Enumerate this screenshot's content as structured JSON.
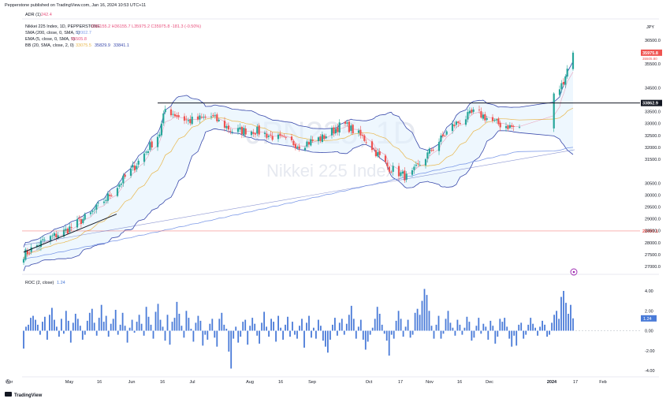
{
  "header": {
    "publisher_text": "Pepperstone published on TradingView.com, Jan 16, 2024 10:53 UTC+11",
    "adr_label": "ADR (1)",
    "adr_value": "242.4",
    "symbol_line": "Nikkei 225 Index, 1D, PEPPERSTONE",
    "ohlc": "O36155.2 H36155.7 L35975.2 C35975.8 -181.3 (-0.50%)",
    "sma_label": "SMA (200, close, 0, SMA, 5)",
    "sma_value": "32002.7",
    "ema_label": "EMA (5, close, 0, SMA, 5)",
    "ema_value": "35505.8",
    "bb_label": "BB (20, SMA, close, 2, 0)",
    "bb_values": [
      "33075.5",
      "35829.9",
      "33841.1"
    ],
    "currency": "JPY"
  },
  "watermark": {
    "ticker": "JPN225, 1D",
    "name": "Nikkei 225 Index"
  },
  "price_labels": {
    "current": "35975.8",
    "current_sub": "35505.80",
    "resistance": "33862.9",
    "support_line": "28490.1"
  },
  "roc_panel": {
    "label": "ROC (2, close)",
    "value": "1.24"
  },
  "footer": {
    "brand": "TradingView"
  },
  "colors": {
    "up": "#26a69a",
    "down": "#ef5350",
    "sma": "#7e9be8",
    "ema": "#e84f7c",
    "bb_basis": "#e8b64a",
    "bb_band": "#3949ab",
    "bb_fill": "#e3f2fd",
    "roc_bar": "#4a7bd8",
    "horizontal": "#131722",
    "support_red": "#ef5350"
  },
  "chart_data": [
    {
      "type": "candlestick",
      "title": "Nikkei 225 Index, 1D, PEPPERSTONE",
      "y_axis_ticks": [
        "36500.0",
        "35500.0",
        "34500.0",
        "33500.0",
        "33000.0",
        "32500.0",
        "32000.0",
        "31500.0",
        "30500.0",
        "30000.0",
        "29500.0",
        "29000.0",
        "28500.0",
        "28000.0",
        "27500.0",
        "27000.0"
      ],
      "x_axis_ticks": [
        "Apr",
        "May",
        "16",
        "Jun",
        "16",
        "Jul",
        "Aug",
        "16",
        "Sep",
        "Oct",
        "17",
        "Nov",
        "16",
        "Dec",
        "2024",
        "17",
        "Feb"
      ],
      "ylim": [
        26800,
        36700
      ],
      "key_levels": {
        "resistance": 33862.9,
        "horizontal_line": 28490.1
      },
      "close_path": {
        "x": [
          "Apr 3",
          "Apr 14",
          "Apr 25",
          "May 8",
          "May 19",
          "May 31",
          "Jun 13",
          "Jun 16",
          "Jun 28",
          "Jul 10",
          "Jul 21",
          "Aug 2",
          "Aug 13",
          "Aug 25",
          "Sep 6",
          "Sep 17",
          "Sep 29",
          "Oct 10",
          "Oct 21",
          "Nov 2",
          "Nov 13",
          "Nov 25",
          "Dec 6",
          "Dec 17",
          "Dec 29",
          "Jan 9",
          "Jan 15"
        ],
        "y": [
          27500,
          28100,
          28500,
          29200,
          30100,
          31200,
          32600,
          33600,
          33100,
          33300,
          32700,
          32700,
          32400,
          32100,
          32400,
          33000,
          32300,
          31200,
          30700,
          31900,
          32900,
          33500,
          33000,
          32800,
          33400,
          34600,
          35975.8
        ]
      },
      "series": [
        {
          "name": "SMA (200, close, 0, SMA, 5)",
          "last": 32002.7
        },
        {
          "name": "EMA (5, close, 0, SMA, 5)",
          "last": 35505.8
        },
        {
          "name": "BB (20, SMA, close, 2, 0)",
          "last": [
            33075.5,
            35829.9,
            33841.1
          ]
        }
      ],
      "grid": false,
      "legend": "top-left"
    },
    {
      "type": "bar",
      "title": "ROC (2, close)",
      "y_axis_ticks": [
        "4.00",
        "2.00",
        "0.00",
        "-2.00",
        "-4.00"
      ],
      "ylim": [
        -4.2,
        4.6
      ],
      "last": 1.24,
      "values": [
        -1.8,
        0.4,
        0.6,
        1.3,
        1.5,
        1.1,
        0.6,
        -0.4,
        0.9,
        1.4,
        -0.9,
        1.6,
        2.3,
        1.1,
        0.4,
        -0.6,
        1.2,
        -0.3,
        2.0,
        1.0,
        -1.2,
        0.8,
        1.7,
        1.2,
        0.5,
        -0.9,
        -0.4,
        1.0,
        1.8,
        2.2,
        0.8,
        -0.5,
        1.3,
        2.6,
        0.9,
        1.5,
        -0.6,
        0.7,
        1.2,
        2.1,
        -0.4,
        0.6,
        1.8,
        0.5,
        -1.2,
        0.3,
        1.1,
        -0.2,
        0.9,
        1.6,
        0.7,
        -0.5,
        2.4,
        1.4,
        0.6,
        -0.8,
        1.9,
        2.7,
        1.1,
        0.4,
        -1.0,
        1.6,
        -1.4,
        0.9,
        1.3,
        2.9,
        1.7,
        0.5,
        -0.7,
        2.0,
        1.3,
        0.2,
        -1.1,
        0.8,
        1.5,
        1.0,
        -1.5,
        -0.4,
        -0.9,
        0.7,
        1.2,
        -0.7,
        -1.6,
        1.2,
        1.8,
        0.6,
        0.2,
        -2.1,
        -3.8,
        -0.8,
        0.4,
        -1.2,
        -0.6,
        0.9,
        1.1,
        -1.4,
        0.5,
        1.3,
        0.7,
        -0.5,
        -1.3,
        0.8,
        1.9,
        0.4,
        -0.6,
        1.2,
        0.9,
        -1.1,
        1.5,
        0.3,
        -0.9,
        0.6,
        1.4,
        -0.6,
        0.9,
        -0.4,
        -0.8,
        0.5,
        1.2,
        -1.7,
        0.8,
        1.5,
        -0.7,
        0.3,
        -0.8,
        1.1,
        0.5,
        -1.0,
        -1.6,
        -2.2,
        -0.9,
        0.6,
        1.3,
        -0.5,
        0.8,
        1.2,
        -0.4,
        0.7,
        1.6,
        2.5,
        1.2,
        -0.8,
        0.4,
        1.1,
        -0.9,
        -1.9,
        -1.1,
        -0.4,
        0.3,
        1.2,
        2.4,
        1.7,
        0.6,
        -0.3,
        -1.0,
        -2.5,
        -0.4,
        -0.8,
        1.0,
        2.0,
        1.2,
        -0.6,
        0.4,
        1.1,
        -0.7,
        -0.4,
        1.8,
        2.2,
        1.6,
        3.0,
        4.2,
        3.6,
        2.0,
        0.5,
        -0.8,
        0.6,
        1.5,
        -0.8,
        -0.3,
        1.2,
        2.0,
        0.8,
        0.3,
        -0.5,
        1.1,
        0.6,
        -0.4,
        0.3,
        1.4,
        0.9,
        -1.0,
        -0.7,
        0.5,
        1.3,
        -0.3,
        0.7,
        0.4,
        -0.9,
        1.0,
        0.5,
        -1.3,
        -0.6,
        1.2,
        0.9,
        1.3,
        0.4,
        -0.8,
        -1.6,
        -0.5,
        -1.5,
        0.6,
        0.8,
        -0.8,
        -0.4,
        0.6,
        1.3,
        0.7,
        0.3,
        -0.5,
        0.4,
        1.0,
        0.6,
        -0.6,
        -0.4,
        0.8,
        1.6,
        2.0,
        1.2,
        3.4,
        4.0,
        2.8,
        1.7,
        2.6,
        1.24
      ]
    }
  ]
}
